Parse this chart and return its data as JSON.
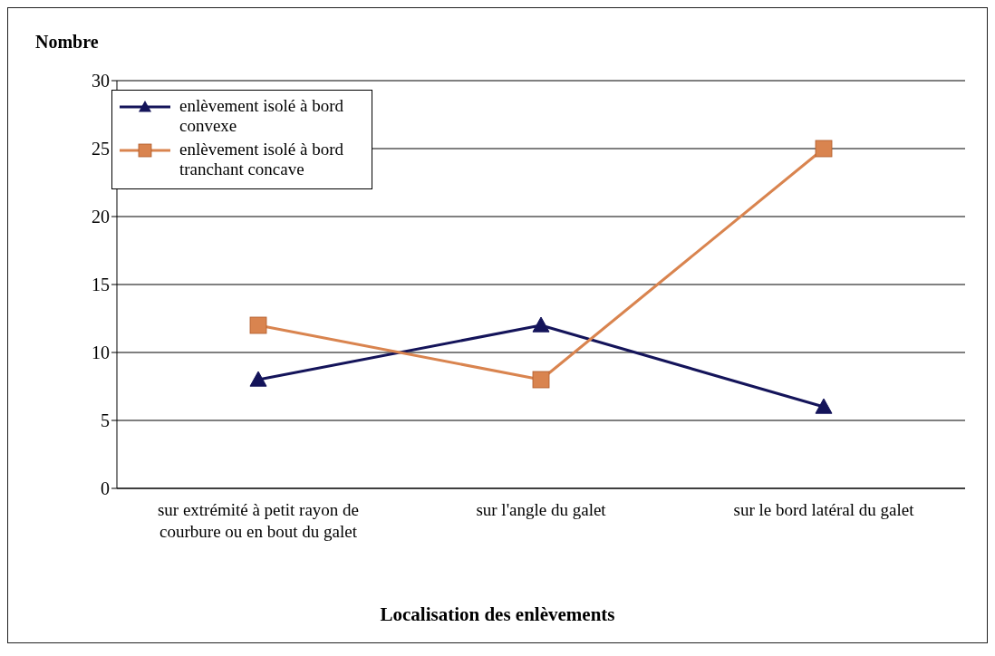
{
  "chart_data": {
    "type": "line",
    "ylabel": "Nombre",
    "xlabel": "Localisation des enlèvements",
    "categories": [
      "sur extrémité à petit rayon de courbure ou en bout du galet",
      "sur l'angle du galet",
      "sur le bord latéral du galet"
    ],
    "series": [
      {
        "name": "enlèvement isolé à bord convexe",
        "color": "#14145a",
        "marker": "triangle",
        "values": [
          8,
          12,
          6
        ]
      },
      {
        "name": "enlèvement isolé à bord tranchant concave",
        "color": "#d9844f",
        "marker": "square",
        "values": [
          12,
          8,
          25
        ]
      }
    ],
    "ylim": [
      0,
      30
    ],
    "yticks": [
      0,
      5,
      10,
      15,
      20,
      25,
      30
    ],
    "grid": "y",
    "legend": "top left",
    "line_style": "solid"
  }
}
